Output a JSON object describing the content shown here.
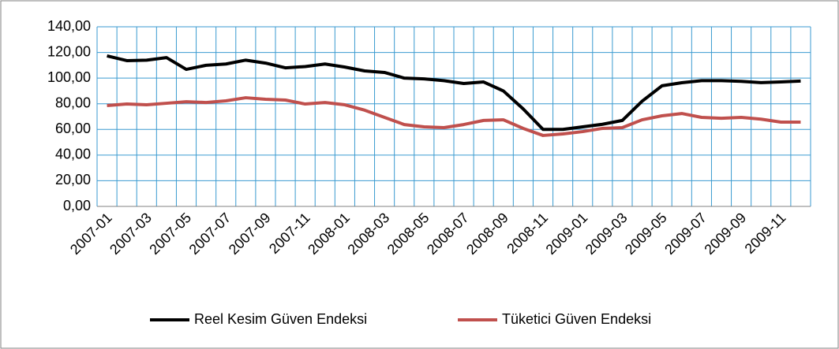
{
  "chart_data": {
    "type": "line",
    "categories": [
      "2007-01",
      null,
      "2007-03",
      null,
      "2007-05",
      null,
      "2007-07",
      null,
      "2007-09",
      null,
      "2007-11",
      null,
      "2008-01",
      null,
      "2008-03",
      null,
      "2008-05",
      null,
      "2008-07",
      null,
      "2008-09",
      null,
      "2008-11",
      null,
      "2009-01",
      null,
      "2009-03",
      null,
      "2009-05",
      null,
      "2009-07",
      null,
      "2009-09",
      null,
      "2009-11",
      null
    ],
    "series": [
      {
        "name": "Reel Kesim Güven Endeksi",
        "color": "#000000",
        "values": [
          117.3,
          113.6,
          114,
          116,
          106.8,
          110,
          111,
          114,
          111.7,
          108,
          109,
          111,
          108.6,
          105.6,
          104.4,
          100,
          99.4,
          98,
          95.8,
          97,
          90,
          76,
          60,
          60,
          62,
          64,
          67,
          82,
          94,
          96.4,
          98,
          98,
          97.5,
          96.5,
          97,
          97.7
        ]
      },
      {
        "name": "Tüketici Güven Endeksi",
        "color": "#c0504d",
        "values": [
          78.6,
          79.8,
          79.2,
          80.4,
          81.6,
          81,
          82.3,
          84.7,
          83.5,
          82.9,
          79.8,
          81,
          79.2,
          75,
          69.4,
          63.8,
          62,
          61.4,
          63.8,
          67,
          67.5,
          60.8,
          55.3,
          56.5,
          58.3,
          60.8,
          61.4,
          67.5,
          70.6,
          72.4,
          69.4,
          68.7,
          69.4,
          68,
          65.7,
          65.7
        ]
      }
    ],
    "ylim": [
      0,
      140
    ],
    "yticks": [
      {
        "value": 0,
        "label": "0,00"
      },
      {
        "value": 20,
        "label": "20,00"
      },
      {
        "value": 40,
        "label": "40,00"
      },
      {
        "value": 60,
        "label": "60,00"
      },
      {
        "value": 80,
        "label": "80,00"
      },
      {
        "value": 100,
        "label": "100,00"
      },
      {
        "value": 120,
        "label": "120,00"
      },
      {
        "value": 140,
        "label": "140,00"
      }
    ],
    "grid": true,
    "legend": "bottom"
  }
}
